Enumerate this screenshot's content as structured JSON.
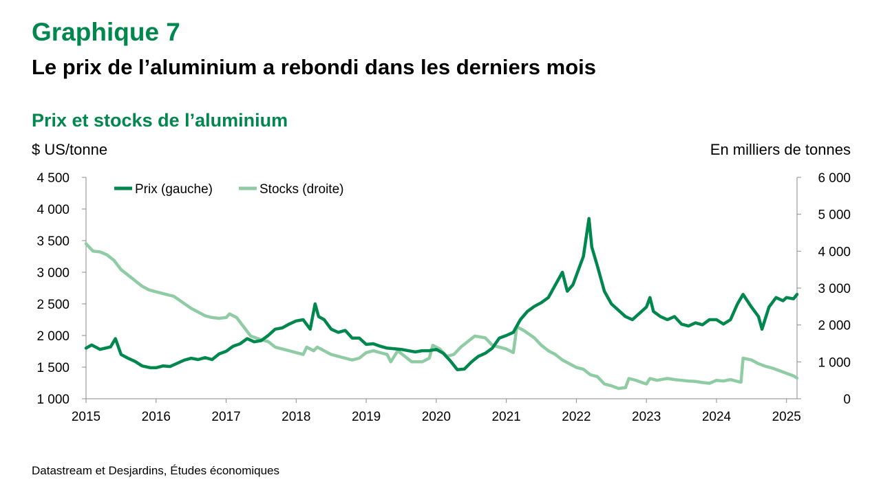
{
  "figure": {
    "label": "Graphique 7",
    "title": "Le prix de l’aluminium a rebondi dans les derniers mois",
    "source": "Datastream et Desjardins, Études économiques"
  },
  "colors": {
    "accent": "#00874e",
    "price": "#00874e",
    "stocks": "#8fcca4"
  },
  "chart_data": {
    "type": "line",
    "title": "Prix et stocks de l’aluminium",
    "ylabel_left": "$ US/tonne",
    "ylabel_right": "En milliers de tonnes",
    "xlim": [
      2015,
      2025.15
    ],
    "ylim_left": [
      1000,
      4500
    ],
    "ylim_right": [
      0,
      6000
    ],
    "x_ticks": [
      "2015",
      "2016",
      "2017",
      "2018",
      "2019",
      "2020",
      "2021",
      "2022",
      "2023",
      "2024",
      "2025"
    ],
    "y_left_ticks": [
      "1 000",
      "1 500",
      "2 000",
      "2 500",
      "3 000",
      "3 500",
      "4 000",
      "4 500"
    ],
    "y_right_ticks": [
      "0",
      "1 000",
      "2 000",
      "3 000",
      "4 000",
      "5 000",
      "6 000"
    ],
    "grid": false,
    "legend_position": "top-left",
    "series": [
      {
        "name": "Prix (gauche)",
        "axis": "left",
        "color": "#00874e",
        "points": [
          [
            2015.0,
            1800
          ],
          [
            2015.08,
            1850
          ],
          [
            2015.2,
            1780
          ],
          [
            2015.35,
            1820
          ],
          [
            2015.42,
            1950
          ],
          [
            2015.5,
            1700
          ],
          [
            2015.6,
            1640
          ],
          [
            2015.7,
            1590
          ],
          [
            2015.8,
            1520
          ],
          [
            2015.92,
            1490
          ],
          [
            2016.0,
            1490
          ],
          [
            2016.1,
            1520
          ],
          [
            2016.2,
            1510
          ],
          [
            2016.3,
            1560
          ],
          [
            2016.4,
            1610
          ],
          [
            2016.5,
            1640
          ],
          [
            2016.6,
            1620
          ],
          [
            2016.7,
            1650
          ],
          [
            2016.8,
            1620
          ],
          [
            2016.9,
            1710
          ],
          [
            2017.0,
            1750
          ],
          [
            2017.1,
            1830
          ],
          [
            2017.2,
            1870
          ],
          [
            2017.3,
            1950
          ],
          [
            2017.4,
            1900
          ],
          [
            2017.5,
            1920
          ],
          [
            2017.6,
            2000
          ],
          [
            2017.7,
            2100
          ],
          [
            2017.8,
            2120
          ],
          [
            2017.9,
            2180
          ],
          [
            2018.0,
            2230
          ],
          [
            2018.1,
            2250
          ],
          [
            2018.2,
            2100
          ],
          [
            2018.27,
            2500
          ],
          [
            2018.32,
            2300
          ],
          [
            2018.4,
            2250
          ],
          [
            2018.5,
            2100
          ],
          [
            2018.6,
            2050
          ],
          [
            2018.7,
            2080
          ],
          [
            2018.8,
            1960
          ],
          [
            2018.9,
            1960
          ],
          [
            2019.0,
            1860
          ],
          [
            2019.1,
            1870
          ],
          [
            2019.2,
            1830
          ],
          [
            2019.3,
            1800
          ],
          [
            2019.4,
            1790
          ],
          [
            2019.5,
            1780
          ],
          [
            2019.6,
            1760
          ],
          [
            2019.7,
            1740
          ],
          [
            2019.8,
            1760
          ],
          [
            2019.9,
            1760
          ],
          [
            2020.0,
            1780
          ],
          [
            2020.1,
            1720
          ],
          [
            2020.2,
            1600
          ],
          [
            2020.3,
            1460
          ],
          [
            2020.4,
            1470
          ],
          [
            2020.5,
            1580
          ],
          [
            2020.6,
            1670
          ],
          [
            2020.7,
            1720
          ],
          [
            2020.8,
            1800
          ],
          [
            2020.9,
            1960
          ],
          [
            2021.0,
            2000
          ],
          [
            2021.1,
            2050
          ],
          [
            2021.2,
            2250
          ],
          [
            2021.3,
            2380
          ],
          [
            2021.4,
            2460
          ],
          [
            2021.5,
            2520
          ],
          [
            2021.6,
            2600
          ],
          [
            2021.7,
            2800
          ],
          [
            2021.8,
            3000
          ],
          [
            2021.87,
            2700
          ],
          [
            2021.95,
            2800
          ],
          [
            2022.0,
            2950
          ],
          [
            2022.1,
            3250
          ],
          [
            2022.18,
            3850
          ],
          [
            2022.22,
            3400
          ],
          [
            2022.3,
            3100
          ],
          [
            2022.4,
            2700
          ],
          [
            2022.5,
            2500
          ],
          [
            2022.6,
            2400
          ],
          [
            2022.7,
            2300
          ],
          [
            2022.8,
            2250
          ],
          [
            2022.9,
            2350
          ],
          [
            2023.0,
            2450
          ],
          [
            2023.05,
            2600
          ],
          [
            2023.1,
            2380
          ],
          [
            2023.2,
            2300
          ],
          [
            2023.3,
            2250
          ],
          [
            2023.4,
            2300
          ],
          [
            2023.5,
            2180
          ],
          [
            2023.6,
            2150
          ],
          [
            2023.7,
            2200
          ],
          [
            2023.8,
            2170
          ],
          [
            2023.9,
            2250
          ],
          [
            2024.0,
            2250
          ],
          [
            2024.1,
            2180
          ],
          [
            2024.2,
            2250
          ],
          [
            2024.3,
            2500
          ],
          [
            2024.38,
            2650
          ],
          [
            2024.5,
            2450
          ],
          [
            2024.6,
            2300
          ],
          [
            2024.65,
            2100
          ],
          [
            2024.75,
            2450
          ],
          [
            2024.85,
            2600
          ],
          [
            2024.95,
            2550
          ],
          [
            2025.0,
            2600
          ],
          [
            2025.1,
            2580
          ],
          [
            2025.15,
            2650
          ]
        ]
      },
      {
        "name": "Stocks (droite)",
        "axis": "right",
        "color": "#8fcca4",
        "points": [
          [
            2015.0,
            4200
          ],
          [
            2015.1,
            4000
          ],
          [
            2015.2,
            3980
          ],
          [
            2015.3,
            3900
          ],
          [
            2015.4,
            3750
          ],
          [
            2015.5,
            3500
          ],
          [
            2015.6,
            3350
          ],
          [
            2015.7,
            3200
          ],
          [
            2015.8,
            3050
          ],
          [
            2015.9,
            2950
          ],
          [
            2016.0,
            2900
          ],
          [
            2016.1,
            2850
          ],
          [
            2016.2,
            2800
          ],
          [
            2016.25,
            2780
          ],
          [
            2016.35,
            2650
          ],
          [
            2016.5,
            2450
          ],
          [
            2016.6,
            2350
          ],
          [
            2016.7,
            2250
          ],
          [
            2016.8,
            2200
          ],
          [
            2016.9,
            2180
          ],
          [
            2017.0,
            2200
          ],
          [
            2017.05,
            2300
          ],
          [
            2017.15,
            2200
          ],
          [
            2017.25,
            1950
          ],
          [
            2017.35,
            1700
          ],
          [
            2017.5,
            1600
          ],
          [
            2017.6,
            1550
          ],
          [
            2017.7,
            1400
          ],
          [
            2017.8,
            1350
          ],
          [
            2017.9,
            1300
          ],
          [
            2018.0,
            1250
          ],
          [
            2018.1,
            1200
          ],
          [
            2018.15,
            1400
          ],
          [
            2018.25,
            1300
          ],
          [
            2018.3,
            1400
          ],
          [
            2018.4,
            1300
          ],
          [
            2018.5,
            1200
          ],
          [
            2018.6,
            1150
          ],
          [
            2018.7,
            1100
          ],
          [
            2018.8,
            1050
          ],
          [
            2018.9,
            1100
          ],
          [
            2019.0,
            1250
          ],
          [
            2019.1,
            1300
          ],
          [
            2019.2,
            1250
          ],
          [
            2019.3,
            1200
          ],
          [
            2019.35,
            1000
          ],
          [
            2019.45,
            1300
          ],
          [
            2019.55,
            1150
          ],
          [
            2019.65,
            1000
          ],
          [
            2019.8,
            1000
          ],
          [
            2019.9,
            1100
          ],
          [
            2019.95,
            1450
          ],
          [
            2020.05,
            1350
          ],
          [
            2020.15,
            1150
          ],
          [
            2020.25,
            1200
          ],
          [
            2020.35,
            1400
          ],
          [
            2020.45,
            1550
          ],
          [
            2020.55,
            1700
          ],
          [
            2020.7,
            1650
          ],
          [
            2020.8,
            1450
          ],
          [
            2020.9,
            1400
          ],
          [
            2021.0,
            1350
          ],
          [
            2021.1,
            1250
          ],
          [
            2021.15,
            1950
          ],
          [
            2021.25,
            1850
          ],
          [
            2021.4,
            1650
          ],
          [
            2021.5,
            1450
          ],
          [
            2021.6,
            1300
          ],
          [
            2021.7,
            1200
          ],
          [
            2021.8,
            1050
          ],
          [
            2021.9,
            950
          ],
          [
            2022.0,
            850
          ],
          [
            2022.1,
            800
          ],
          [
            2022.2,
            650
          ],
          [
            2022.3,
            600
          ],
          [
            2022.4,
            400
          ],
          [
            2022.5,
            350
          ],
          [
            2022.6,
            280
          ],
          [
            2022.7,
            300
          ],
          [
            2022.75,
            550
          ],
          [
            2022.85,
            500
          ],
          [
            2022.95,
            430
          ],
          [
            2023.0,
            400
          ],
          [
            2023.05,
            550
          ],
          [
            2023.15,
            500
          ],
          [
            2023.3,
            550
          ],
          [
            2023.4,
            520
          ],
          [
            2023.5,
            500
          ],
          [
            2023.6,
            480
          ],
          [
            2023.7,
            470
          ],
          [
            2023.8,
            440
          ],
          [
            2023.9,
            420
          ],
          [
            2024.0,
            500
          ],
          [
            2024.1,
            480
          ],
          [
            2024.2,
            520
          ],
          [
            2024.3,
            470
          ],
          [
            2024.35,
            450
          ],
          [
            2024.38,
            1100
          ],
          [
            2024.5,
            1050
          ],
          [
            2024.6,
            950
          ],
          [
            2024.7,
            880
          ],
          [
            2024.8,
            830
          ],
          [
            2024.9,
            760
          ],
          [
            2025.0,
            690
          ],
          [
            2025.1,
            620
          ],
          [
            2025.15,
            560
          ]
        ]
      }
    ]
  }
}
